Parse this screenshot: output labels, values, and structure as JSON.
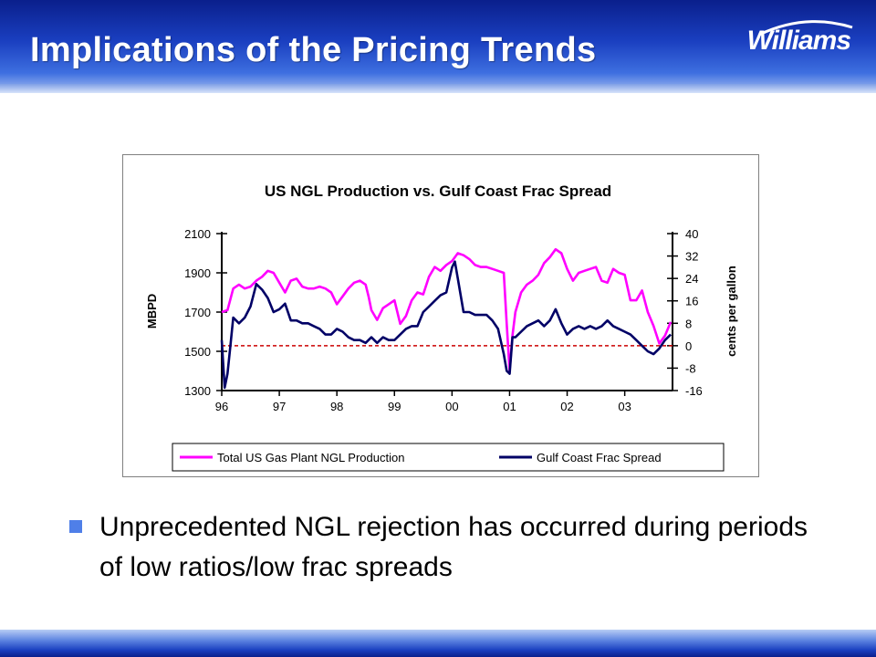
{
  "slide": {
    "title": "Implications of the Pricing Trends",
    "logo_text": "Williams",
    "bullet": "Unprecedented NGL rejection has occurred during periods of low ratios/low frac spreads"
  },
  "colors": {
    "header_blue": "#1a3fc0",
    "production_line": "#ff00ff",
    "spread_line": "#000066",
    "zero_line": "#cc0000"
  },
  "chart_data": {
    "type": "line",
    "title": "US NGL Production vs. Gulf Coast Frac Spread",
    "ylabel": "MBPD",
    "y2label": "cents per gallon",
    "ylim": [
      1300,
      2100
    ],
    "y2lim": [
      -16,
      40
    ],
    "xlim": [
      1996.0,
      2003.83
    ],
    "yticks": [
      1300,
      1500,
      1700,
      1900,
      2100
    ],
    "y2ticks": [
      -16,
      -8,
      0,
      8,
      16,
      24,
      32,
      40
    ],
    "xticks": [
      {
        "x": 1996,
        "label": "96"
      },
      {
        "x": 1997,
        "label": "97"
      },
      {
        "x": 1998,
        "label": "98"
      },
      {
        "x": 1999,
        "label": "99"
      },
      {
        "x": 2000,
        "label": "00"
      },
      {
        "x": 2001,
        "label": "01"
      },
      {
        "x": 2002,
        "label": "02"
      },
      {
        "x": 2003,
        "label": "03"
      }
    ],
    "reference_line": {
      "axis": "y2",
      "value": 0,
      "style": "dashed"
    },
    "legend_position": "bottom",
    "series": [
      {
        "name": "Total US Gas Plant NGL Production",
        "axis": "y",
        "color": "#ff00ff",
        "x": [
          1996.0,
          1996.1,
          1996.2,
          1996.3,
          1996.4,
          1996.5,
          1996.6,
          1996.7,
          1996.8,
          1996.9,
          1997.0,
          1997.1,
          1997.2,
          1997.3,
          1997.4,
          1997.5,
          1997.6,
          1997.7,
          1997.8,
          1997.9,
          1998.0,
          1998.1,
          1998.2,
          1998.3,
          1998.4,
          1998.5,
          1998.55,
          1998.6,
          1998.7,
          1998.8,
          1998.9,
          1999.0,
          1999.1,
          1999.2,
          1999.3,
          1999.4,
          1999.5,
          1999.6,
          1999.7,
          1999.8,
          1999.9,
          2000.0,
          2000.1,
          2000.2,
          2000.3,
          2000.4,
          2000.5,
          2000.6,
          2000.7,
          2000.8,
          2000.9,
          2000.95,
          2001.0,
          2001.05,
          2001.1,
          2001.2,
          2001.3,
          2001.4,
          2001.5,
          2001.6,
          2001.7,
          2001.8,
          2001.9,
          2002.0,
          2002.1,
          2002.2,
          2002.3,
          2002.4,
          2002.5,
          2002.6,
          2002.7,
          2002.8,
          2002.9,
          2003.0,
          2003.1,
          2003.2,
          2003.3,
          2003.4,
          2003.5,
          2003.6,
          2003.7,
          2003.8
        ],
        "values": [
          1700,
          1710,
          1820,
          1840,
          1820,
          1830,
          1860,
          1880,
          1910,
          1900,
          1850,
          1800,
          1860,
          1870,
          1830,
          1820,
          1820,
          1830,
          1820,
          1800,
          1740,
          1780,
          1820,
          1850,
          1860,
          1840,
          1780,
          1710,
          1660,
          1720,
          1740,
          1760,
          1640,
          1680,
          1760,
          1800,
          1790,
          1880,
          1930,
          1910,
          1940,
          1960,
          2000,
          1990,
          1970,
          1940,
          1930,
          1930,
          1920,
          1910,
          1900,
          1640,
          1400,
          1580,
          1700,
          1800,
          1840,
          1860,
          1890,
          1950,
          1980,
          2020,
          2000,
          1920,
          1860,
          1900,
          1910,
          1920,
          1930,
          1860,
          1850,
          1920,
          1900,
          1890,
          1760,
          1760,
          1810,
          1700,
          1630,
          1540,
          1580,
          1650
        ]
      },
      {
        "name": "Gulf Coast Frac Spread",
        "axis": "y2",
        "color": "#000066",
        "x": [
          1996.0,
          1996.05,
          1996.1,
          1996.15,
          1996.2,
          1996.3,
          1996.4,
          1996.5,
          1996.6,
          1996.7,
          1996.8,
          1996.9,
          1997.0,
          1997.1,
          1997.2,
          1997.3,
          1997.4,
          1997.5,
          1997.6,
          1997.7,
          1997.8,
          1997.9,
          1998.0,
          1998.1,
          1998.2,
          1998.3,
          1998.4,
          1998.5,
          1998.6,
          1998.7,
          1998.8,
          1998.9,
          1999.0,
          1999.1,
          1999.2,
          1999.3,
          1999.4,
          1999.5,
          1999.6,
          1999.7,
          1999.8,
          1999.9,
          2000.0,
          2000.05,
          2000.1,
          2000.2,
          2000.3,
          2000.4,
          2000.5,
          2000.6,
          2000.7,
          2000.8,
          2000.9,
          2000.95,
          2001.0,
          2001.05,
          2001.1,
          2001.2,
          2001.3,
          2001.4,
          2001.5,
          2001.6,
          2001.7,
          2001.8,
          2001.9,
          2002.0,
          2002.1,
          2002.2,
          2002.3,
          2002.4,
          2002.5,
          2002.6,
          2002.7,
          2002.8,
          2002.9,
          2003.0,
          2003.1,
          2003.2,
          2003.3,
          2003.4,
          2003.5,
          2003.6,
          2003.7,
          2003.8
        ],
        "values": [
          2,
          -15,
          -10,
          0,
          10,
          8,
          10,
          14,
          22,
          20,
          17,
          12,
          13,
          15,
          9,
          9,
          8,
          8,
          7,
          6,
          4,
          4,
          6,
          5,
          3,
          2,
          2,
          1,
          3,
          1,
          3,
          2,
          2,
          4,
          6,
          7,
          7,
          12,
          14,
          16,
          18,
          19,
          28,
          30,
          24,
          12,
          12,
          11,
          11,
          11,
          9,
          6,
          -3,
          -9,
          -10,
          3,
          3,
          5,
          7,
          8,
          9,
          7,
          9,
          13,
          8,
          4,
          6,
          7,
          6,
          7,
          6,
          7,
          9,
          7,
          6,
          5,
          4,
          2,
          0,
          -2,
          -3,
          -1,
          2,
          4
        ]
      }
    ]
  }
}
